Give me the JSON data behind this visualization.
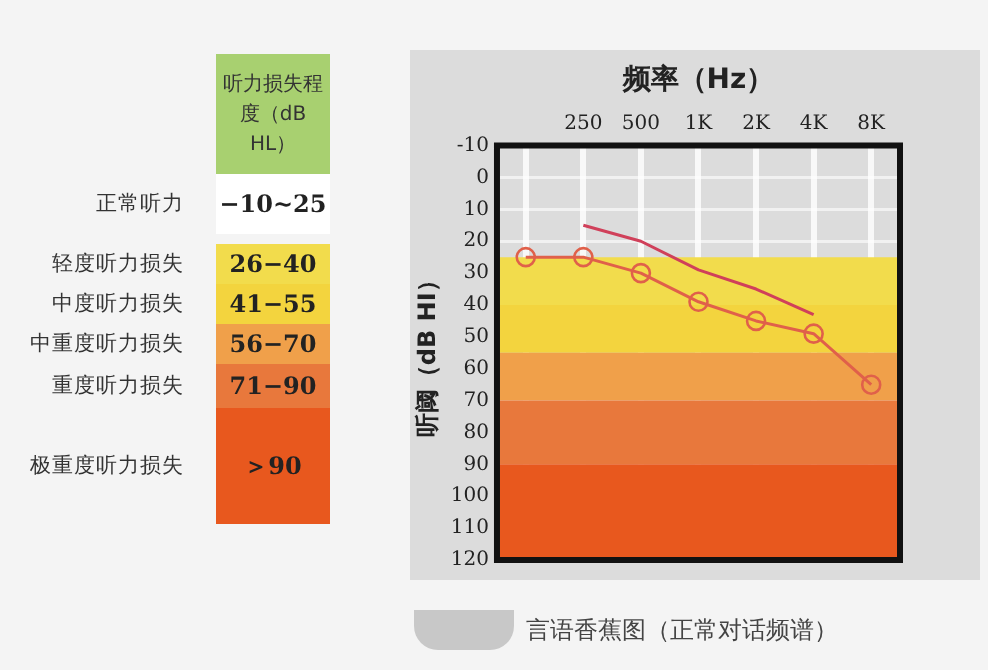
{
  "chart_data": {
    "type": "line",
    "xlabel": "频率（Hz）",
    "ylabel": "听阈（dB HI）",
    "categories": [
      null,
      "250",
      "500",
      "1K",
      "2K",
      "4K",
      "8K"
    ],
    "series": [
      {
        "color": "#e0604a",
        "marker": "circle",
        "values": [
          25,
          25,
          30,
          39,
          45,
          49,
          65
        ]
      },
      {
        "color": "#d0405a",
        "marker": "none",
        "values": [
          null,
          15,
          20,
          29,
          35,
          43,
          null
        ]
      }
    ],
    "ylim": [
      120,
      -10
    ],
    "yticks": [
      -10,
      0,
      10,
      20,
      30,
      40,
      50,
      60,
      70,
      80,
      90,
      100,
      110,
      120
    ],
    "grid": true,
    "legend": false,
    "bands": [
      {
        "axis": "y",
        "from": 25,
        "to": 40,
        "color": "#f2dc4c"
      },
      {
        "axis": "y",
        "from": 40,
        "to": 55,
        "color": "#f3d43e"
      },
      {
        "axis": "y",
        "from": 55,
        "to": 70,
        "color": "#f0a04a"
      },
      {
        "axis": "y",
        "from": 70,
        "to": 90,
        "color": "#e8783c"
      },
      {
        "axis": "y",
        "from": 90,
        "to": 120,
        "color": "#e8581e"
      }
    ],
    "annotations": [
      "听力损失程度（dB HL）",
      "正常听力",
      "−10~25",
      "轻度听力损失",
      "26−40",
      "中度听力损失",
      "41−55",
      "中重度听力损失",
      "56−70",
      "重度听力损失",
      "71−90",
      "极重度听力损失",
      "＞90",
      "言语香蕉图（正常对话频谱）"
    ]
  }
}
